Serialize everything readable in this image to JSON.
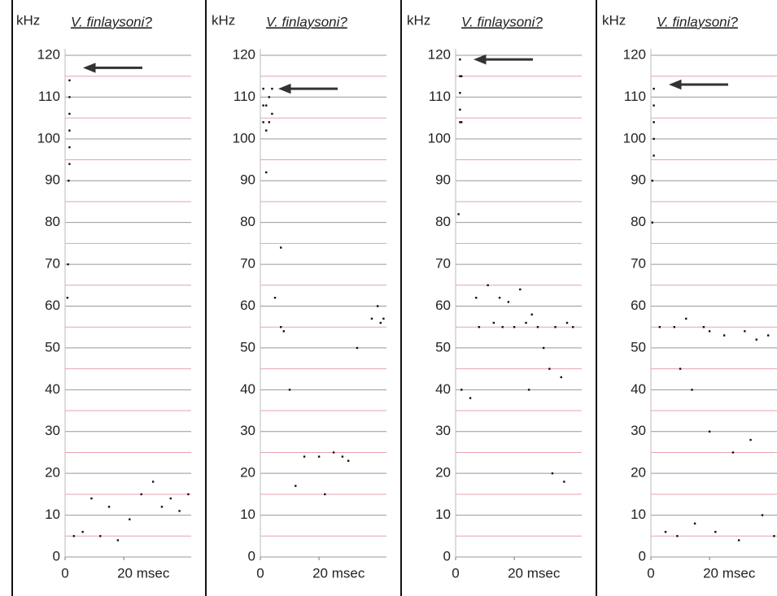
{
  "chart_data": [
    {
      "type": "scatter",
      "title": "V. finlaysoni?",
      "y_label": "kHz",
      "xlim": [
        0,
        43
      ],
      "ylim": [
        0,
        120
      ],
      "xticks": [
        0,
        {
          "value": 20,
          "label": "20 msec"
        }
      ],
      "yticks": [
        0,
        10,
        20,
        30,
        40,
        50,
        60,
        70,
        80,
        90,
        100,
        110,
        120
      ],
      "yminor": [
        5,
        15,
        25,
        35,
        45,
        55,
        65,
        75,
        85,
        95,
        105,
        115
      ],
      "grid": true,
      "arrow": {
        "y": 117
      },
      "series": [
        {
          "color": "#111111",
          "x": [
            1.5,
            1.5,
            1.5,
            1.5,
            1.5,
            1.5,
            1.2,
            1.0,
            0.8,
            3,
            6,
            9,
            12,
            15,
            18,
            22,
            26,
            30,
            33,
            36,
            39,
            42
          ],
          "values": [
            114,
            110,
            106,
            102,
            98,
            94,
            90,
            70,
            62,
            5,
            6,
            14,
            5,
            12,
            4,
            9,
            15,
            18,
            12,
            14,
            11,
            15
          ]
        }
      ]
    },
    {
      "type": "scatter",
      "title": "V. finlaysoni?",
      "y_label": "kHz",
      "xlim": [
        0,
        43
      ],
      "ylim": [
        0,
        120
      ],
      "xticks": [
        0,
        {
          "value": 20,
          "label": "20 msec"
        }
      ],
      "yticks": [
        0,
        10,
        20,
        30,
        40,
        50,
        60,
        70,
        80,
        90,
        100,
        110,
        120
      ],
      "yminor": [
        5,
        15,
        25,
        35,
        45,
        55,
        65,
        75,
        85,
        95,
        105,
        115
      ],
      "grid": true,
      "arrow": {
        "y": 112
      },
      "series": [
        {
          "color": "#111111",
          "x": [
            1,
            1,
            1,
            2,
            2,
            3,
            3,
            4,
            4,
            2,
            7,
            7,
            8,
            5,
            10,
            15,
            20,
            25,
            28,
            30,
            33,
            38,
            40,
            41,
            42,
            12,
            22
          ],
          "values": [
            112,
            108,
            104,
            108,
            102,
            110,
            104,
            112,
            106,
            92,
            74,
            55,
            54,
            62,
            40,
            24,
            24,
            25,
            24,
            23,
            50,
            57,
            60,
            56,
            57,
            17,
            15
          ]
        }
      ]
    },
    {
      "type": "scatter",
      "title": "V. finlaysoni?",
      "y_label": "kHz",
      "xlim": [
        0,
        43
      ],
      "ylim": [
        0,
        120
      ],
      "xticks": [
        0,
        {
          "value": 20,
          "label": "20 msec"
        }
      ],
      "yticks": [
        0,
        10,
        20,
        30,
        40,
        50,
        60,
        70,
        80,
        90,
        100,
        110,
        120
      ],
      "yminor": [
        5,
        15,
        25,
        35,
        45,
        55,
        65,
        75,
        85,
        95,
        105,
        115
      ],
      "grid": true,
      "arrow": {
        "y": 119
      },
      "series": [
        {
          "color": "#111111",
          "x": [
            1.5,
            1.5,
            1.5,
            1.5,
            1.5,
            2,
            2,
            1,
            7,
            8,
            11,
            13,
            15,
            16,
            18,
            20,
            22,
            24,
            26,
            28,
            30,
            32,
            34,
            36,
            38,
            40,
            2,
            5,
            25,
            33,
            37
          ],
          "values": [
            119,
            115,
            111,
            107,
            104,
            115,
            104,
            82,
            62,
            55,
            65,
            56,
            62,
            55,
            61,
            55,
            64,
            56,
            58,
            55,
            50,
            45,
            55,
            43,
            56,
            55,
            40,
            38,
            40,
            20,
            18
          ]
        }
      ]
    },
    {
      "type": "scatter",
      "title": "V. finlaysoni?",
      "y_label": "kHz",
      "xlim": [
        0,
        43
      ],
      "ylim": [
        0,
        120
      ],
      "xticks": [
        0,
        {
          "value": 20,
          "label": "20 msec"
        }
      ],
      "yticks": [
        0,
        10,
        20,
        30,
        40,
        50,
        60,
        70,
        80,
        90,
        100,
        110,
        120
      ],
      "yminor": [
        5,
        15,
        25,
        35,
        45,
        55,
        65,
        75,
        85,
        95,
        105,
        115
      ],
      "grid": true,
      "arrow": {
        "y": 113
      },
      "series": [
        {
          "color": "#111111",
          "x": [
            1,
            1,
            1,
            1,
            1,
            0.5,
            0.5,
            3,
            8,
            12,
            18,
            20,
            25,
            32,
            36,
            40,
            10,
            14,
            20,
            28,
            34,
            5,
            9,
            15,
            22,
            30,
            38,
            42
          ],
          "values": [
            112,
            108,
            104,
            100,
            96,
            90,
            80,
            55,
            55,
            57,
            55,
            54,
            53,
            54,
            52,
            53,
            45,
            40,
            30,
            25,
            28,
            6,
            5,
            8,
            6,
            4,
            10,
            5
          ]
        }
      ]
    }
  ]
}
